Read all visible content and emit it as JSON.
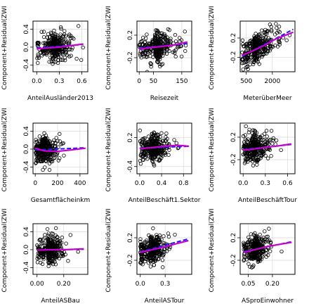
{
  "chart_data": [
    {
      "type": "scatter",
      "xlabel": "AnteilAusländer2013",
      "ylabel": "Component+Residual(ZWI",
      "xticks": [
        {
          "v": 0,
          "label": "0.0"
        },
        {
          "v": 0.3,
          "label": "0.3"
        },
        {
          "v": 0.6,
          "label": "0.6"
        }
      ],
      "yticks": [
        {
          "v": -0.4,
          "label": "-0.4"
        },
        {
          "v": 0,
          "label": "0.0"
        },
        {
          "v": 0.4,
          "label": "0.4"
        }
      ],
      "xlim": [
        -0.05,
        0.68
      ],
      "ylim": [
        -0.55,
        0.58
      ],
      "fit_line": [
        [
          0,
          -0.02
        ],
        [
          0.62,
          0.06
        ]
      ],
      "smooth_line": [
        [
          0,
          -0.04
        ],
        [
          0.15,
          -0.02
        ],
        [
          0.3,
          0.0
        ],
        [
          0.45,
          0.03
        ],
        [
          0.62,
          0.07
        ]
      ],
      "cloud": {
        "x_mean": 0.2,
        "x_sd": 0.13,
        "y_sd": 0.15,
        "x_min": 0.0,
        "x_max": 0.63,
        "n": 320,
        "seed": 11
      }
    },
    {
      "type": "scatter",
      "xlabel": "Reisezeit",
      "ylabel": "Component+Residual(ZWI",
      "xticks": [
        {
          "v": 0,
          "label": "0"
        },
        {
          "v": 50,
          "label": "50"
        },
        {
          "v": 150,
          "label": "150"
        }
      ],
      "yticks": [
        {
          "v": -0.2,
          "label": "-0.2"
        },
        {
          "v": 0.2,
          "label": "0.2"
        }
      ],
      "xlim": [
        -8,
        185
      ],
      "ylim": [
        -0.45,
        0.45
      ],
      "fit_line": [
        [
          0,
          -0.03
        ],
        [
          170,
          0.05
        ]
      ],
      "smooth_line": [
        [
          0,
          -0.05
        ],
        [
          40,
          -0.02
        ],
        [
          80,
          0.0
        ],
        [
          120,
          0.02
        ],
        [
          170,
          0.08
        ]
      ],
      "cloud": {
        "x_mean": 55,
        "x_sd": 35,
        "y_sd": 0.12,
        "x_min": 0,
        "x_max": 175,
        "n": 320,
        "seed": 23
      }
    },
    {
      "type": "scatter",
      "xlabel": "MeterüberMeer",
      "ylabel": "Component+Residual(ZWI",
      "xticks": [
        {
          "v": 500,
          "label": "500"
        },
        {
          "v": 2000,
          "label": "2000"
        }
      ],
      "yticks": [
        {
          "v": -0.2,
          "label": "-0.2"
        },
        {
          "v": 0.2,
          "label": "0.2"
        }
      ],
      "xlim": [
        150,
        3300
      ],
      "ylim": [
        -0.5,
        0.55
      ],
      "fit_line": [
        [
          250,
          -0.18
        ],
        [
          3200,
          0.38
        ]
      ],
      "smooth_line": [
        [
          250,
          -0.16
        ],
        [
          800,
          -0.08
        ],
        [
          1500,
          0.04
        ],
        [
          2200,
          0.18
        ],
        [
          3200,
          0.32
        ]
      ],
      "cloud": {
        "x_mean": 900,
        "x_sd": 700,
        "y_sd": 0.14,
        "x_min": 250,
        "x_max": 3200,
        "n": 320,
        "seed": 37,
        "trend": 0.00017,
        "trend_x0": 1000
      }
    },
    {
      "type": "scatter",
      "xlabel": "Gesamtflächeinkm",
      "ylabel": "Component+Residual(ZWI",
      "xticks": [
        {
          "v": 0,
          "label": "0"
        },
        {
          "v": 200,
          "label": "200"
        },
        {
          "v": 400,
          "label": "400"
        }
      ],
      "yticks": [
        {
          "v": -0.4,
          "label": "-0.4"
        },
        {
          "v": 0,
          "label": "0.0"
        },
        {
          "v": 0.4,
          "label": "0.4"
        }
      ],
      "xlim": [
        -20,
        470
      ],
      "ylim": [
        -0.55,
        0.58
      ],
      "fit_line": [
        [
          0,
          -0.02
        ],
        [
          450,
          0.03
        ]
      ],
      "smooth_line": [
        [
          0,
          0.02
        ],
        [
          80,
          -0.04
        ],
        [
          200,
          -0.05
        ],
        [
          320,
          -0.02
        ],
        [
          450,
          0.02
        ]
      ],
      "cloud": {
        "x_mean": 60,
        "x_sd": 70,
        "y_sd": 0.14,
        "x_min": 0,
        "x_max": 450,
        "n": 300,
        "seed": 41
      }
    },
    {
      "type": "scatter",
      "xlabel": "AnteilBeschäft1.Sektor",
      "ylabel": "Component+Residual(ZWI",
      "xticks": [
        {
          "v": 0,
          "label": "0.0"
        },
        {
          "v": 0.4,
          "label": "0.4"
        },
        {
          "v": 0.8,
          "label": "0.8"
        }
      ],
      "yticks": [
        {
          "v": -0.4,
          "label": "-0.4"
        },
        {
          "v": 0.2,
          "label": "0.2"
        }
      ],
      "xlim": [
        -0.05,
        0.95
      ],
      "ylim": [
        -0.55,
        0.5
      ],
      "fit_line": [
        [
          0,
          -0.02
        ],
        [
          0.9,
          0.02
        ]
      ],
      "smooth_line": [
        [
          0,
          -0.03
        ],
        [
          0.2,
          -0.01
        ],
        [
          0.45,
          0.02
        ],
        [
          0.7,
          0.04
        ],
        [
          0.9,
          0.02
        ]
      ],
      "cloud": {
        "x_mean": 0.2,
        "x_sd": 0.18,
        "y_sd": 0.14,
        "x_min": 0,
        "x_max": 0.9,
        "n": 320,
        "seed": 53
      }
    },
    {
      "type": "scatter",
      "xlabel": "AnteilBeschäftTour",
      "ylabel": "Component+Residual(ZWI",
      "xticks": [
        {
          "v": 0,
          "label": "0.0"
        },
        {
          "v": 0.3,
          "label": "0.3"
        },
        {
          "v": 0.6,
          "label": "0.6"
        }
      ],
      "yticks": [
        {
          "v": -0.2,
          "label": "-0.2"
        },
        {
          "v": 0.2,
          "label": "0.2"
        }
      ],
      "xlim": [
        -0.04,
        0.7
      ],
      "ylim": [
        -0.45,
        0.45
      ],
      "fit_line": [
        [
          0,
          -0.02
        ],
        [
          0.65,
          0.07
        ]
      ],
      "smooth_line": [
        [
          0,
          -0.03
        ],
        [
          0.15,
          -0.01
        ],
        [
          0.3,
          0.02
        ],
        [
          0.45,
          0.04
        ],
        [
          0.65,
          0.08
        ]
      ],
      "cloud": {
        "x_mean": 0.12,
        "x_sd": 0.12,
        "y_sd": 0.12,
        "x_min": 0,
        "x_max": 0.65,
        "n": 320,
        "seed": 67
      }
    },
    {
      "type": "scatter",
      "xlabel": "AnteilASBau",
      "ylabel": "Component+Residual(ZWI",
      "xticks": [
        {
          "v": 0,
          "label": "0.00"
        },
        {
          "v": 0.2,
          "label": "0.20"
        }
      ],
      "yticks": [
        {
          "v": -0.4,
          "label": "-0.4"
        },
        {
          "v": 0,
          "label": "0.0"
        },
        {
          "v": 0.4,
          "label": "0.4"
        }
      ],
      "xlim": [
        -0.03,
        0.38
      ],
      "ylim": [
        -0.55,
        0.58
      ],
      "fit_line": [
        [
          0,
          -0.01
        ],
        [
          0.35,
          0.01
        ]
      ],
      "smooth_line": [
        [
          0,
          -0.01
        ],
        [
          0.1,
          0.0
        ],
        [
          0.2,
          0.0
        ],
        [
          0.35,
          0.02
        ]
      ],
      "cloud": {
        "x_mean": 0.08,
        "x_sd": 0.06,
        "y_sd": 0.15,
        "x_min": 0,
        "x_max": 0.35,
        "n": 320,
        "seed": 79
      }
    },
    {
      "type": "scatter",
      "xlabel": "AnteilASTour",
      "ylabel": "Component+Residual(ZWI",
      "xticks": [
        {
          "v": 0,
          "label": "0.0"
        },
        {
          "v": 0.3,
          "label": "0.3"
        }
      ],
      "yticks": [
        {
          "v": -0.2,
          "label": "-0.2"
        },
        {
          "v": 0.2,
          "label": "0.2"
        }
      ],
      "xlim": [
        -0.04,
        0.62
      ],
      "ylim": [
        -0.45,
        0.45
      ],
      "fit_line": [
        [
          0,
          -0.05
        ],
        [
          0.58,
          0.18
        ]
      ],
      "smooth_line": [
        [
          0,
          -0.06
        ],
        [
          0.15,
          -0.01
        ],
        [
          0.3,
          0.04
        ],
        [
          0.45,
          0.1
        ],
        [
          0.58,
          0.15
        ]
      ],
      "cloud": {
        "x_mean": 0.12,
        "x_sd": 0.1,
        "y_sd": 0.12,
        "x_min": 0,
        "x_max": 0.58,
        "n": 320,
        "seed": 83,
        "trend": 0.3,
        "trend_x0": 0.12
      }
    },
    {
      "type": "scatter",
      "xlabel": "ASproEinwohner",
      "ylabel": "Component+Residual(ZWI",
      "xticks": [
        {
          "v": 0.05,
          "label": "0.05"
        },
        {
          "v": 0.2,
          "label": "0.20"
        }
      ],
      "yticks": [
        {
          "v": -0.2,
          "label": "-0.2"
        },
        {
          "v": 0.2,
          "label": "0.2"
        }
      ],
      "xlim": [
        0.0,
        0.34
      ],
      "ylim": [
        -0.45,
        0.45
      ],
      "fit_line": [
        [
          0.02,
          -0.05
        ],
        [
          0.32,
          0.13
        ]
      ],
      "smooth_line": [
        [
          0.02,
          -0.06
        ],
        [
          0.08,
          -0.02
        ],
        [
          0.16,
          0.04
        ],
        [
          0.24,
          0.08
        ],
        [
          0.32,
          0.12
        ]
      ],
      "cloud": {
        "x_mean": 0.08,
        "x_sd": 0.05,
        "y_sd": 0.12,
        "x_min": 0.02,
        "x_max": 0.32,
        "n": 320,
        "seed": 97,
        "trend": 0.6,
        "trend_x0": 0.08
      }
    }
  ],
  "colors": {
    "points": "#000000",
    "fit_line": "#1a1aff",
    "smooth_line": "#cc00cc",
    "grid": "#d9d9d9",
    "frame": "#000000"
  }
}
